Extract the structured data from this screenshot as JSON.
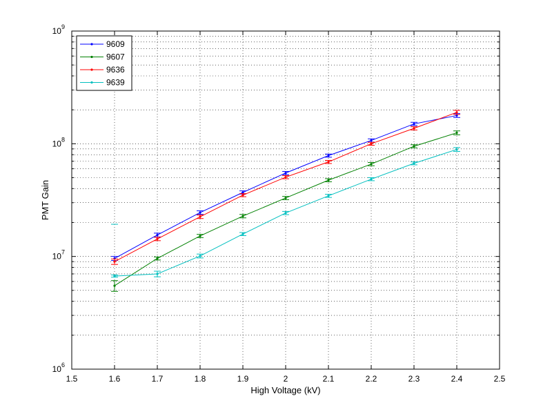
{
  "chart_data": {
    "type": "line",
    "xlabel": "High Voltage (kV)",
    "ylabel": "PMT Gain",
    "xlim": [
      1.5,
      2.5
    ],
    "ylim": [
      1000000,
      1000000000
    ],
    "yscale": "log",
    "grid": true,
    "legend_position": "top-left",
    "x_ticks": [
      "1.5",
      "1.6",
      "1.7",
      "1.8",
      "1.9",
      "2",
      "2.1",
      "2.2",
      "2.3",
      "2.4",
      "2.5"
    ],
    "y_ticks": [
      {
        "base": "10",
        "exp": "6"
      },
      {
        "base": "10",
        "exp": "7"
      },
      {
        "base": "10",
        "exp": "8"
      },
      {
        "base": "10",
        "exp": "9"
      }
    ],
    "x": [
      1.6,
      1.7,
      1.8,
      1.9,
      2.0,
      2.1,
      2.2,
      2.3,
      2.4
    ],
    "series": [
      {
        "name": "9609",
        "color": "#0000ff",
        "values": [
          9600000,
          15500000,
          24500000,
          37000000,
          55000000,
          78500000,
          107000000,
          150000000,
          178000000
        ],
        "errors": [
          400000,
          600000,
          900000,
          1200000,
          1800000,
          2500000,
          3500000,
          5000000,
          7000000
        ]
      },
      {
        "name": "9607",
        "color": "#008000",
        "values": [
          5500000,
          9600000,
          15200000,
          22800000,
          33000000,
          47500000,
          66000000,
          95000000,
          125000000
        ],
        "errors": [
          600000,
          300000,
          500000,
          800000,
          1100000,
          1500000,
          2200000,
          3000000,
          5000000
        ]
      },
      {
        "name": "9636",
        "color": "#ff0000",
        "values": [
          9000000,
          14300000,
          22500000,
          35000000,
          50500000,
          69000000,
          100000000,
          137000000,
          190000000
        ],
        "errors": [
          500000,
          500000,
          800000,
          1100000,
          1600000,
          2200000,
          3000000,
          4500000,
          8000000
        ]
      },
      {
        "name": "9639",
        "color": "#00bfbf",
        "values": [
          6700000,
          7000000,
          10100000,
          15800000,
          24300000,
          34500000,
          48500000,
          67000000,
          89000000
        ],
        "errors": [
          150000,
          400000,
          400000,
          500000,
          800000,
          1100000,
          1500000,
          2000000,
          3500000
        ],
        "outlier": {
          "x": 1.6,
          "y": 19300000
        }
      }
    ]
  }
}
